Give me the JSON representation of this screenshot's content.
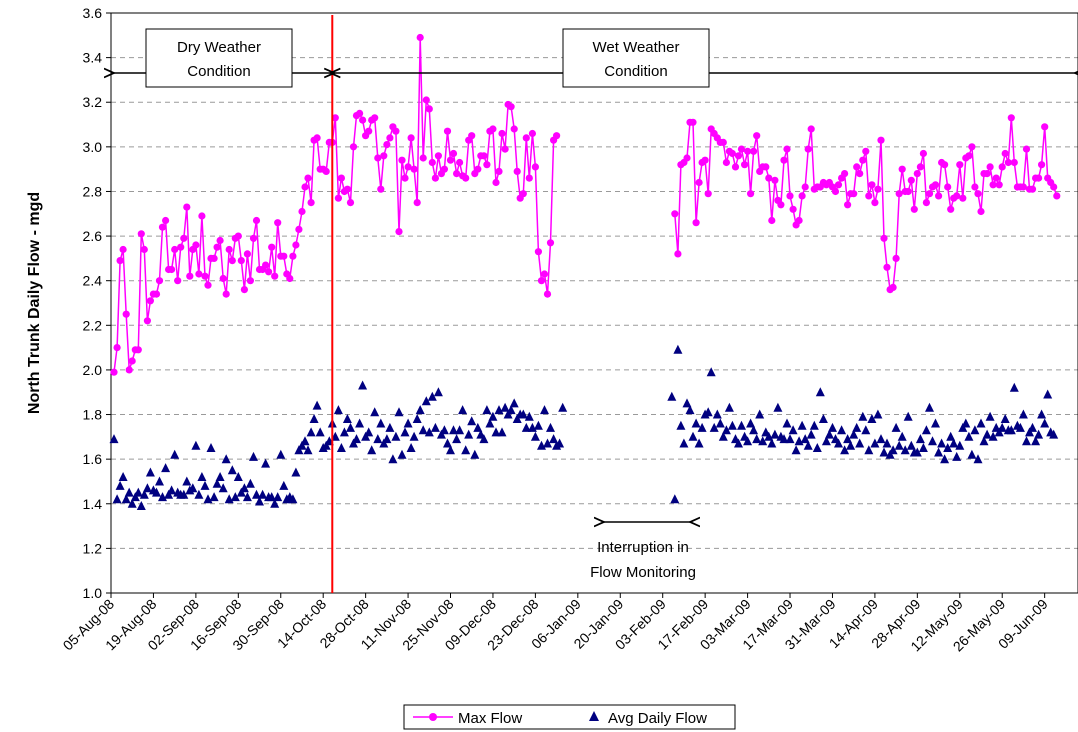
{
  "chart_data": {
    "type": "scatter",
    "title": "",
    "ylabel": "North Trunk Daily Flow - mgd",
    "xlabel": "",
    "ylim": [
      1.0,
      3.6
    ],
    "yticks": [
      "1.0",
      "1.2",
      "1.4",
      "1.6",
      "1.8",
      "2.0",
      "2.2",
      "2.4",
      "2.6",
      "2.8",
      "3.0",
      "3.2",
      "3.4",
      "3.6"
    ],
    "grid": "horizontal dashed",
    "legend_position": "bottom",
    "x_start": "05-Aug-08",
    "x_end": "20-Jun-09",
    "x_tick_labels": [
      "05-Aug-08",
      "19-Aug-08",
      "02-Sep-08",
      "16-Sep-08",
      "30-Sep-08",
      "14-Oct-08",
      "28-Oct-08",
      "11-Nov-08",
      "25-Nov-08",
      "09-Dec-08",
      "23-Dec-08",
      "06-Jan-09",
      "20-Jan-09",
      "03-Feb-09",
      "17-Feb-09",
      "03-Mar-09",
      "17-Mar-09",
      "31-Mar-09",
      "14-Apr-09",
      "28-Apr-09",
      "12-May-09",
      "26-May-09",
      "09-Jun-09"
    ],
    "divider_date": "17-Oct-08",
    "annotations": {
      "dry_line1": "Dry Weather",
      "dry_line2": "Condition",
      "wet_line1": "Wet Weather",
      "wet_line2": "Condition",
      "gap_line1": "Interruption in",
      "gap_line2": "Flow Monitoring"
    },
    "series": [
      {
        "name": "Max Flow",
        "color": "#ff00ff",
        "marker": "circle",
        "segments": [
          {
            "start_date": "06-Aug-08",
            "values": [
              1.99,
              2.1,
              2.49,
              2.54,
              2.25,
              2.0,
              2.04,
              2.09,
              2.09,
              2.61,
              2.54,
              2.22,
              2.31,
              2.34,
              2.34,
              2.4,
              2.64,
              2.67,
              2.45,
              2.45,
              2.54,
              2.4,
              2.55,
              2.59,
              2.73,
              2.42,
              2.54,
              2.56,
              2.43,
              2.69,
              2.42,
              2.38,
              2.5,
              2.5,
              2.55,
              2.58,
              2.41,
              2.34,
              2.54,
              2.49,
              2.59,
              2.6,
              2.49,
              2.36,
              2.52,
              2.4,
              2.59,
              2.67,
              2.45,
              2.45,
              2.47,
              2.44,
              2.55,
              2.42,
              2.66,
              2.51,
              2.51,
              2.43,
              2.41,
              2.51,
              2.56,
              2.63,
              2.71,
              2.82,
              2.86,
              2.75,
              3.03,
              3.04,
              2.9,
              2.9,
              2.89,
              3.02,
              3.02,
              3.13,
              2.77,
              2.86,
              2.8,
              2.81,
              2.75,
              3.0,
              3.14,
              3.15,
              3.12,
              3.05,
              3.07,
              3.12,
              3.13,
              2.95,
              2.81,
              2.96,
              3.01,
              3.04,
              3.09,
              3.07,
              2.62,
              2.94,
              2.86,
              2.91,
              3.04,
              2.9,
              2.75,
              3.49,
              2.95,
              3.21,
              3.17,
              2.93,
              2.86,
              2.96,
              2.88,
              2.9,
              3.07,
              2.94,
              2.97,
              2.88,
              2.93,
              2.87,
              2.86,
              3.03,
              3.05,
              2.88,
              2.9,
              2.96,
              2.96,
              2.92,
              3.07,
              3.08,
              2.84,
              2.89,
              3.06,
              2.99,
              3.19,
              3.18,
              3.08,
              2.89,
              2.77,
              2.79,
              3.04,
              2.86,
              3.06,
              2.91,
              2.53,
              2.4,
              2.43,
              2.34,
              2.57,
              3.03,
              3.05
            ]
          },
          {
            "start_date": "07-Feb-09",
            "values": [
              2.7,
              2.52,
              2.92,
              2.93,
              2.95,
              3.11,
              3.11,
              2.66,
              2.84,
              2.93,
              2.94,
              2.79,
              3.08,
              3.06,
              3.04,
              3.02,
              3.02,
              2.93,
              2.98,
              2.97,
              2.91,
              2.96,
              2.99,
              2.92,
              2.98,
              2.79,
              2.98,
              3.05,
              2.89,
              2.91,
              2.91,
              2.86,
              2.67,
              2.85,
              2.76,
              2.74,
              2.94,
              2.99,
              2.78,
              2.72,
              2.65,
              2.67,
              2.78,
              2.82,
              2.99,
              3.08,
              2.81,
              2.82,
              2.82,
              2.84,
              2.83,
              2.84,
              2.82,
              2.8,
              2.83,
              2.86,
              2.88,
              2.74,
              2.79,
              2.79,
              2.91,
              2.88,
              2.94,
              2.98,
              2.78,
              2.83,
              2.75,
              2.81,
              3.03,
              2.59,
              2.46,
              2.36,
              2.37,
              2.5,
              2.79,
              2.9,
              2.8,
              2.8,
              2.85,
              2.72,
              2.88,
              2.91,
              2.97,
              2.75,
              2.79,
              2.82,
              2.83,
              2.78,
              2.93,
              2.92,
              2.82,
              2.72,
              2.77,
              2.78,
              2.92,
              2.77,
              2.95,
              2.96,
              3.0,
              2.82,
              2.79,
              2.71,
              2.88,
              2.88,
              2.91,
              2.83,
              2.86,
              2.83,
              2.91,
              2.97,
              2.93,
              3.13,
              2.93,
              2.82,
              2.82,
              2.82,
              2.99,
              2.81,
              2.81,
              2.86,
              2.86,
              2.92,
              3.09,
              2.86,
              2.84,
              2.82,
              2.78
            ]
          }
        ]
      },
      {
        "name": "Avg Daily Flow",
        "color": "#000080",
        "marker": "triangle",
        "segments": [
          {
            "start_date": "06-Aug-08",
            "values": [
              1.69,
              1.42,
              1.48,
              1.52,
              1.42,
              1.45,
              1.4,
              1.43,
              1.45,
              1.39,
              1.44,
              1.47,
              1.54,
              1.46,
              1.45,
              1.5,
              1.43,
              1.56,
              1.44,
              1.46,
              1.62,
              1.45,
              1.44,
              1.44,
              1.5,
              1.46,
              1.47,
              1.66,
              1.44,
              1.52,
              1.48,
              1.42,
              1.65,
              1.43,
              1.49,
              1.52,
              1.47,
              1.6,
              1.42,
              1.55,
              1.43,
              1.52,
              1.45,
              1.47,
              1.43,
              1.49,
              1.61,
              1.44,
              1.41,
              1.44,
              1.58,
              1.43,
              1.43,
              1.4,
              1.43,
              1.62,
              1.48,
              1.42,
              1.43,
              1.42,
              1.54,
              1.64,
              1.66,
              1.68,
              1.64,
              1.72,
              1.78,
              1.84,
              1.72,
              1.65,
              1.66,
              1.68,
              1.76,
              1.7,
              1.82,
              1.65,
              1.72,
              1.78,
              1.74,
              1.67,
              1.69,
              1.76,
              1.93,
              1.7,
              1.72,
              1.64,
              1.81,
              1.69,
              1.76,
              1.67,
              1.69,
              1.74,
              1.6,
              1.7,
              1.81,
              1.62,
              1.72,
              1.76,
              1.65,
              1.7,
              1.78,
              1.82,
              1.73,
              1.86,
              1.72,
              1.88,
              1.74,
              1.9,
              1.71,
              1.73,
              1.67,
              1.64,
              1.73,
              1.69,
              1.73,
              1.82,
              1.64,
              1.71,
              1.77,
              1.62,
              1.74,
              1.71,
              1.69,
              1.82,
              1.76,
              1.79,
              1.72,
              1.82,
              1.72,
              1.83,
              1.8,
              1.82,
              1.85,
              1.78,
              1.8,
              1.8,
              1.74,
              1.79,
              1.74,
              1.7,
              1.75,
              1.66,
              1.82,
              1.67,
              1.74,
              1.69,
              1.66,
              1.67,
              1.83
            ]
          },
          {
            "start_date": "06-Feb-09",
            "values": [
              1.88,
              1.42,
              2.09,
              1.75,
              1.67,
              1.85,
              1.82,
              1.7,
              1.76,
              1.67,
              1.74,
              1.8,
              1.81,
              1.99,
              1.74,
              1.8,
              1.76,
              1.7,
              1.73,
              1.83,
              1.75,
              1.69,
              1.67,
              1.75,
              1.7,
              1.68,
              1.76,
              1.73,
              1.69,
              1.8,
              1.68,
              1.72,
              1.7,
              1.67,
              1.71,
              1.83,
              1.7,
              1.69,
              1.76,
              1.69,
              1.73,
              1.64,
              1.68,
              1.75,
              1.69,
              1.66,
              1.71,
              1.75,
              1.65,
              1.9,
              1.78,
              1.68,
              1.71,
              1.74,
              1.69,
              1.67,
              1.73,
              1.64,
              1.69,
              1.66,
              1.71,
              1.74,
              1.67,
              1.79,
              1.73,
              1.64,
              1.78,
              1.67,
              1.8,
              1.69,
              1.63,
              1.67,
              1.62,
              1.64,
              1.74,
              1.66,
              1.7,
              1.64,
              1.79,
              1.66,
              1.63,
              1.63,
              1.69,
              1.65,
              1.73,
              1.83,
              1.68,
              1.76,
              1.63,
              1.67,
              1.6,
              1.65,
              1.7,
              1.67,
              1.61,
              1.66,
              1.74,
              1.76,
              1.7,
              1.62,
              1.73,
              1.6,
              1.76,
              1.68,
              1.71,
              1.79,
              1.7,
              1.74,
              1.72,
              1.74,
              1.78,
              1.73,
              1.73,
              1.92,
              1.75,
              1.74,
              1.8,
              1.68,
              1.72,
              1.74,
              1.68,
              1.71,
              1.8,
              1.76,
              1.89,
              1.72,
              1.71
            ]
          }
        ]
      }
    ]
  }
}
